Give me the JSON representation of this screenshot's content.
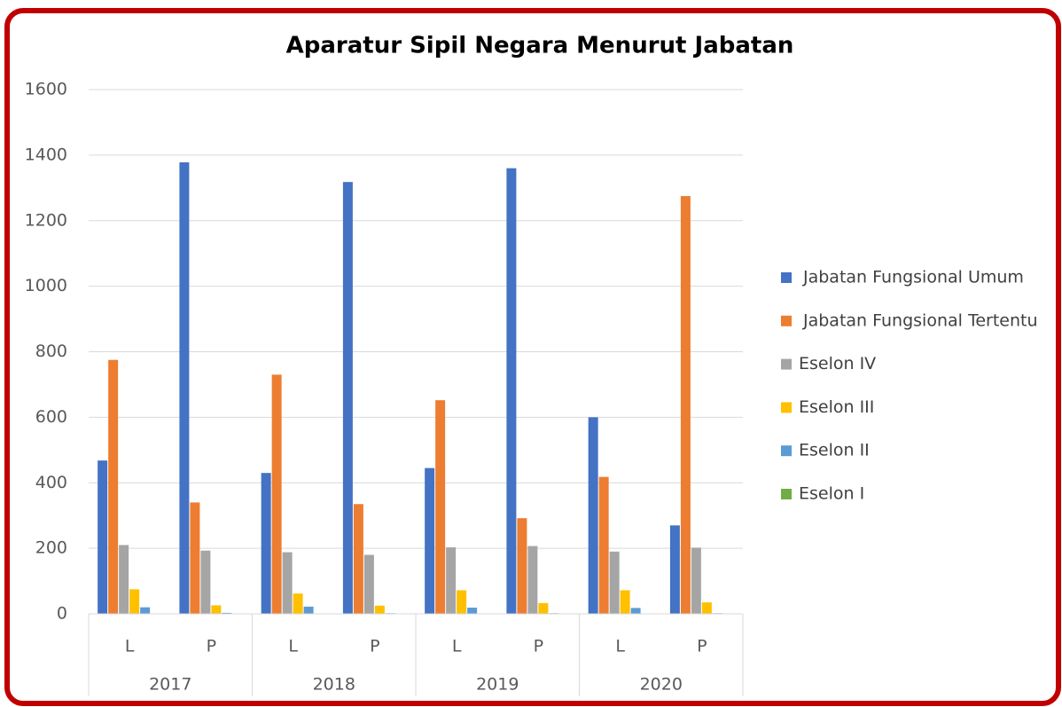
{
  "chart_data": {
    "type": "bar",
    "title": "Aparatur Sipil Negara Menurut Jabatan",
    "categories": [
      "L",
      "P",
      "L",
      "P",
      "L",
      "P",
      "L",
      "P"
    ],
    "category_groups": [
      "2017",
      "2018",
      "2019",
      "2020"
    ],
    "series": [
      {
        "name": "Jabatan Fungsional Umum",
        "color": "#4472c4",
        "values": [
          468,
          1378,
          430,
          1318,
          445,
          1360,
          600,
          270
        ]
      },
      {
        "name": "Jabatan Fungsional Tertentu",
        "color": "#ed7d31",
        "values": [
          775,
          340,
          730,
          335,
          652,
          292,
          418,
          1275
        ]
      },
      {
        "name": "Eselon IV",
        "color": "#a5a5a5",
        "values": [
          210,
          193,
          188,
          180,
          203,
          207,
          190,
          202
        ]
      },
      {
        "name": "Eselon III",
        "color": "#ffc000",
        "values": [
          75,
          26,
          62,
          25,
          72,
          33,
          72,
          35
        ]
      },
      {
        "name": "Eselon II",
        "color": "#5b9bd5",
        "values": [
          20,
          3,
          22,
          2,
          19,
          2,
          18,
          2
        ]
      },
      {
        "name": "Eselon I",
        "color": "#70ad47",
        "values": [
          1,
          0,
          1,
          0,
          1,
          0,
          1,
          0
        ]
      }
    ],
    "ylim": [
      0,
      1600
    ],
    "yticks": [
      0,
      200,
      400,
      600,
      800,
      1000,
      1200,
      1400,
      1600
    ],
    "grid": true,
    "legend": "right"
  }
}
